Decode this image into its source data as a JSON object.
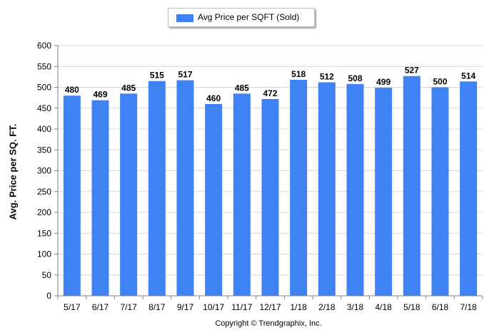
{
  "chart_data": {
    "type": "bar",
    "legend": "Avg Price per SQFT (Sold)",
    "legend_position": "top-center",
    "ylabel": "Avg. Price per SQ. FT.",
    "xlabel": "",
    "footer": "Copyright © Trendgraphix, Inc.",
    "categories": [
      "5/17",
      "6/17",
      "7/17",
      "8/17",
      "9/17",
      "10/17",
      "11/17",
      "12/17",
      "1/18",
      "2/18",
      "3/18",
      "4/18",
      "5/18",
      "6/18",
      "7/18"
    ],
    "series": [
      {
        "name": "Avg Price per SQFT (Sold)",
        "values": [
          480,
          469,
          485,
          515,
          517,
          460,
          485,
          472,
          518,
          512,
          508,
          499,
          527,
          500,
          514
        ]
      }
    ],
    "ylim": [
      0,
      600
    ],
    "yticks": [
      0,
      50,
      100,
      150,
      200,
      250,
      300,
      350,
      400,
      450,
      500,
      550,
      600
    ],
    "grid": true,
    "bar_color": "#3f82f4",
    "grid_color": "#d8d8d8"
  }
}
